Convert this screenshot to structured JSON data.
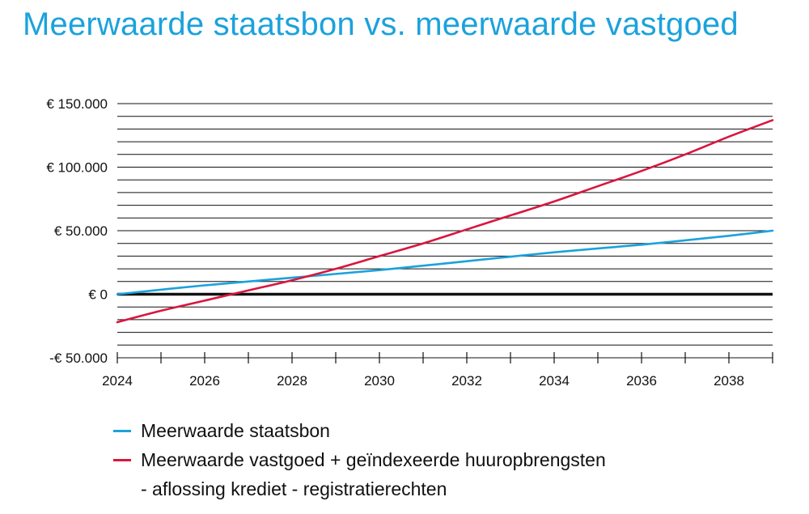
{
  "chart_data": {
    "type": "line",
    "title": "Meerwaarde staatsbon vs. meerwaarde vastgoed",
    "xlabel": "",
    "ylabel": "",
    "xlim": [
      2024,
      2039
    ],
    "ylim": [
      -50000,
      150000
    ],
    "x_ticks": [
      2024,
      2025,
      2026,
      2027,
      2028,
      2029,
      2030,
      2031,
      2032,
      2033,
      2034,
      2035,
      2036,
      2037,
      2038,
      2039
    ],
    "x_tick_labels": [
      {
        "value": 2024,
        "label": "2024"
      },
      {
        "value": 2026,
        "label": "2026"
      },
      {
        "value": 2028,
        "label": "2028"
      },
      {
        "value": 2030,
        "label": "2030"
      },
      {
        "value": 2032,
        "label": "2032"
      },
      {
        "value": 2034,
        "label": "2034"
      },
      {
        "value": 2036,
        "label": "2036"
      },
      {
        "value": 2038,
        "label": "2038"
      }
    ],
    "y_gridlines": [
      -50000,
      -40000,
      -30000,
      -20000,
      -10000,
      0,
      10000,
      20000,
      30000,
      40000,
      50000,
      60000,
      70000,
      80000,
      90000,
      100000,
      110000,
      120000,
      130000,
      140000,
      150000
    ],
    "y_tick_labels": [
      {
        "value": 150000,
        "label": "€ 150.000"
      },
      {
        "value": 100000,
        "label": "€ 100.000"
      },
      {
        "value": 50000,
        "label": "€ 50.000"
      },
      {
        "value": 0,
        "label": "€ 0"
      },
      {
        "value": -50000,
        "label": "-€ 50.000"
      }
    ],
    "grid": true,
    "series": [
      {
        "name": "Meerwaarde staatsbon",
        "color": "#1ba2dc",
        "x": [
          2024,
          2026,
          2028,
          2030,
          2032,
          2034,
          2036,
          2038,
          2039
        ],
        "y": [
          0,
          7000,
          13000,
          19000,
          26000,
          33000,
          39000,
          46000,
          50000
        ]
      },
      {
        "name": "Meerwaarde vastgoed + geïndexeerde huuropbrengsten - aflossing krediet - registratierechten",
        "color": "#d9163e",
        "x": [
          2024,
          2025,
          2026,
          2027,
          2028,
          2029,
          2030,
          2031,
          2032,
          2033,
          2034,
          2035,
          2036,
          2037,
          2038,
          2039
        ],
        "y": [
          -22000,
          -13000,
          -5000,
          3000,
          11000,
          20000,
          30000,
          40000,
          51000,
          62000,
          73000,
          85000,
          97000,
          110000,
          124000,
          137000
        ]
      }
    ]
  },
  "legend": {
    "staatsbon": "Meerwaarde staatsbon",
    "vastgoed_line1": "Meerwaarde vastgoed + geïndexeerde huuropbrengsten",
    "vastgoed_line2": "- aflossing krediet - registratierechten"
  }
}
